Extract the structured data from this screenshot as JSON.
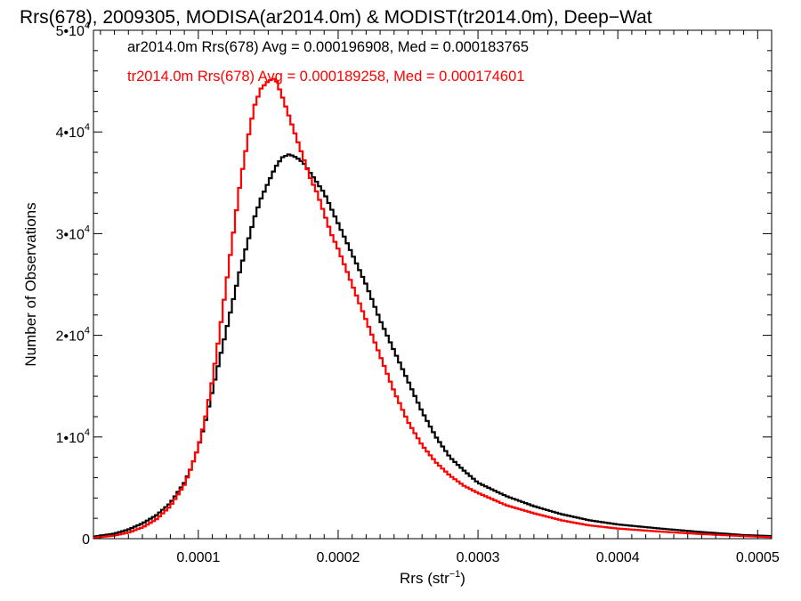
{
  "chart_data": {
    "type": "line",
    "title": "Rrs(678), 2009305, MODISA(ar2014.0m) & MODIST(tr2014.0m), Deep−Wat",
    "xlabel": {
      "base": "Rrs (str",
      "sup": "−1",
      "tail": ")"
    },
    "ylabel": "Number of Observations",
    "xlim": [
      2.5e-05,
      0.00051
    ],
    "ylim": [
      0,
      50000
    ],
    "x_ticks": [
      {
        "value": 0.0001,
        "label": "0.0001"
      },
      {
        "value": 0.0002,
        "label": "0.0002"
      },
      {
        "value": 0.0003,
        "label": "0.0003"
      },
      {
        "value": 0.0004,
        "label": "0.0004"
      },
      {
        "value": 0.0005,
        "label": "0.0005"
      }
    ],
    "y_ticks": [
      {
        "value": 0,
        "mant": "0",
        "exp": ""
      },
      {
        "value": 10000,
        "mant": "1•10",
        "exp": "4"
      },
      {
        "value": 20000,
        "mant": "2•10",
        "exp": "4"
      },
      {
        "value": 30000,
        "mant": "3•10",
        "exp": "4"
      },
      {
        "value": 40000,
        "mant": "4•10",
        "exp": "4"
      },
      {
        "value": 50000,
        "mant": "5•10",
        "exp": "4"
      }
    ],
    "grid": false,
    "legend_position": "top-left",
    "series": [
      {
        "name": "ar2014.0m Rrs(678) Avg = 0.000196908, Med = 0.000183765",
        "color": "#000000",
        "step": true,
        "points": [
          [
            2.5e-05,
            200
          ],
          [
            4e-05,
            500
          ],
          [
            5e-05,
            900
          ],
          [
            6e-05,
            1500
          ],
          [
            7e-05,
            2300
          ],
          [
            8e-05,
            3500
          ],
          [
            9e-05,
            5500
          ],
          [
            9.5e-05,
            7000
          ],
          [
            0.0001,
            9000
          ],
          [
            0.000105,
            11500
          ],
          [
            0.00011,
            14500
          ],
          [
            0.000115,
            17500
          ],
          [
            0.00012,
            20500
          ],
          [
            0.000125,
            23500
          ],
          [
            0.00013,
            26500
          ],
          [
            0.000135,
            29000
          ],
          [
            0.00014,
            31500
          ],
          [
            0.000145,
            33500
          ],
          [
            0.00015,
            35000
          ],
          [
            0.000155,
            36500
          ],
          [
            0.00016,
            37500
          ],
          [
            0.000165,
            37800
          ],
          [
            0.00017,
            37500
          ],
          [
            0.000175,
            37000
          ],
          [
            0.00018,
            36000
          ],
          [
            0.000185,
            35000
          ],
          [
            0.00019,
            34000
          ],
          [
            0.000195,
            32500
          ],
          [
            0.0002,
            31000
          ],
          [
            0.00021,
            28000
          ],
          [
            0.00022,
            25000
          ],
          [
            0.00023,
            21500
          ],
          [
            0.00024,
            18500
          ],
          [
            0.00025,
            15500
          ],
          [
            0.00026,
            12500
          ],
          [
            0.00027,
            10000
          ],
          [
            0.00028,
            8000
          ],
          [
            0.00029,
            6700
          ],
          [
            0.0003,
            5500
          ],
          [
            0.00032,
            4200
          ],
          [
            0.00034,
            3200
          ],
          [
            0.00036,
            2400
          ],
          [
            0.00038,
            1800
          ],
          [
            0.0004,
            1400
          ],
          [
            0.00043,
            1000
          ],
          [
            0.00046,
            650
          ],
          [
            0.00049,
            350
          ],
          [
            0.00051,
            250
          ]
        ]
      },
      {
        "name": "tr2014.0m Rrs(678) Avg = 0.000189258, Med = 0.000174601",
        "color": "#ff0000",
        "step": true,
        "points": [
          [
            2.5e-05,
            100
          ],
          [
            4e-05,
            300
          ],
          [
            5e-05,
            600
          ],
          [
            6e-05,
            1100
          ],
          [
            7e-05,
            1900
          ],
          [
            8e-05,
            3200
          ],
          [
            9e-05,
            5300
          ],
          [
            9.5e-05,
            7000
          ],
          [
            0.0001,
            9000
          ],
          [
            0.000105,
            11800
          ],
          [
            0.00011,
            15500
          ],
          [
            0.000115,
            20000
          ],
          [
            0.00012,
            25000
          ],
          [
            0.000125,
            30000
          ],
          [
            0.00013,
            35000
          ],
          [
            0.000135,
            39000
          ],
          [
            0.00014,
            42500
          ],
          [
            0.000145,
            44300
          ],
          [
            0.00015,
            45000
          ],
          [
            0.000155,
            45300
          ],
          [
            0.00016,
            43500
          ],
          [
            0.000165,
            41500
          ],
          [
            0.00017,
            39500
          ],
          [
            0.000175,
            37500
          ],
          [
            0.00018,
            35500
          ],
          [
            0.000185,
            34000
          ],
          [
            0.00019,
            32000
          ],
          [
            0.000195,
            30000
          ],
          [
            0.0002,
            28500
          ],
          [
            0.00021,
            25000
          ],
          [
            0.00022,
            21500
          ],
          [
            0.00023,
            18000
          ],
          [
            0.00024,
            14500
          ],
          [
            0.00025,
            11500
          ],
          [
            0.00026,
            9200
          ],
          [
            0.00027,
            7500
          ],
          [
            0.00028,
            6200
          ],
          [
            0.00029,
            5200
          ],
          [
            0.0003,
            4500
          ],
          [
            0.00032,
            3300
          ],
          [
            0.00034,
            2500
          ],
          [
            0.00036,
            1800
          ],
          [
            0.00038,
            1300
          ],
          [
            0.0004,
            1000
          ],
          [
            0.00043,
            700
          ],
          [
            0.00046,
            450
          ],
          [
            0.00049,
            250
          ],
          [
            0.00051,
            150
          ]
        ]
      }
    ]
  }
}
